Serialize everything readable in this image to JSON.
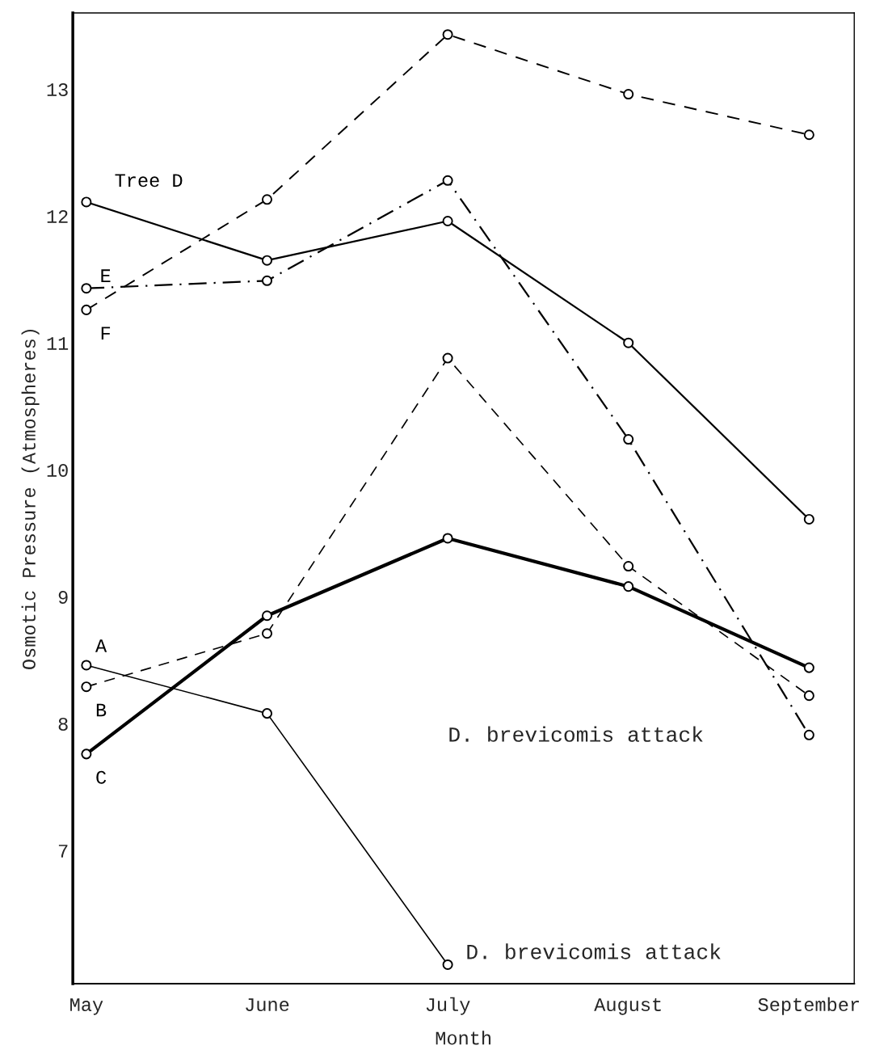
{
  "chart_data": {
    "type": "line",
    "xlabel": "Month",
    "ylabel": "Osmotic Pressure (Atmospheres)",
    "categories": [
      "May",
      "June",
      "July",
      "August",
      "September"
    ],
    "series": [
      {
        "name": "Tree D",
        "color": "#000000",
        "line_style": "solid",
        "values": [
          12.11,
          11.65,
          11.96,
          11.0,
          9.61
        ]
      },
      {
        "name": "E",
        "color": "#000000",
        "line_style": "dashdot",
        "values": [
          11.43,
          11.49,
          12.28,
          10.24,
          7.91
        ]
      },
      {
        "name": "F",
        "color": "#000000",
        "line_style": "dashed",
        "values": [
          11.26,
          12.13,
          13.43,
          12.96,
          12.64
        ]
      },
      {
        "name": "A",
        "color": "#000000",
        "line_style": "solid",
        "values": [
          8.46,
          8.08,
          6.1,
          null,
          null
        ]
      },
      {
        "name": "B",
        "color": "#000000",
        "line_style": "dashed",
        "values": [
          8.29,
          8.71,
          10.88,
          9.24,
          8.22
        ]
      },
      {
        "name": "C",
        "color": "#000000",
        "line_style": "solid",
        "values": [
          7.76,
          8.85,
          9.46,
          9.08,
          8.44
        ]
      }
    ],
    "ylim": [
      5.95,
      13.6
    ],
    "yticks": [
      7,
      8,
      9,
      10,
      11,
      12,
      13
    ],
    "marker": "circle",
    "grid": false,
    "legend": false,
    "annotations": [
      "D. brevicomis attack",
      {
        "text": "D. brevicomis attack",
        "x": "July",
        "y": 6.1
      }
    ]
  }
}
